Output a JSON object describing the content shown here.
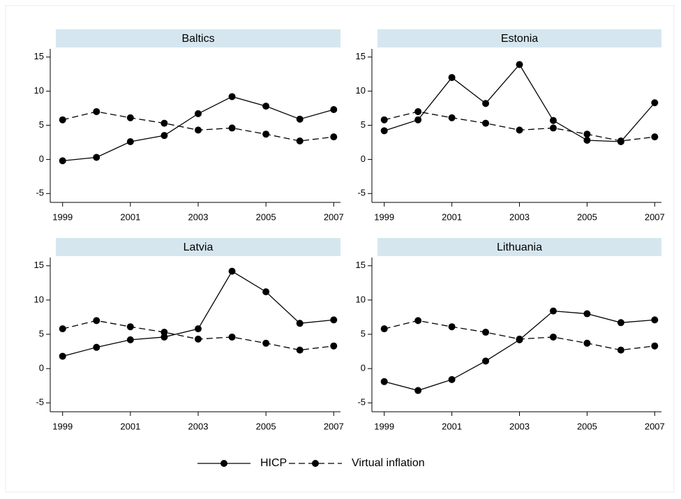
{
  "chart_data": [
    {
      "type": "line",
      "title": "Baltics",
      "x": [
        1999,
        2000,
        2001,
        2002,
        2003,
        2004,
        2005,
        2006,
        2007
      ],
      "xlim": [
        1998.8,
        2007.2
      ],
      "xticks": [
        1999,
        2001,
        2003,
        2005,
        2007
      ],
      "ylim": [
        -6.3,
        16.2
      ],
      "yticks": [
        -5,
        0,
        5,
        10,
        15
      ],
      "grid": false,
      "series": [
        {
          "name": "HICP",
          "color": "#000000",
          "line_style": "solid",
          "values": [
            -0.2,
            0.3,
            2.6,
            3.5,
            6.7,
            9.2,
            7.8,
            5.9,
            7.3
          ]
        },
        {
          "name": "Virtual inflation",
          "color": "#000000",
          "line_style": "dashed",
          "values": [
            5.8,
            7.0,
            6.1,
            5.3,
            4.3,
            4.6,
            3.7,
            2.7,
            3.3
          ]
        }
      ]
    },
    {
      "type": "line",
      "title": "Estonia",
      "x": [
        1999,
        2000,
        2001,
        2002,
        2003,
        2004,
        2005,
        2006,
        2007
      ],
      "xlim": [
        1998.8,
        2007.2
      ],
      "xticks": [
        1999,
        2001,
        2003,
        2005,
        2007
      ],
      "ylim": [
        -6.3,
        16.2
      ],
      "yticks": [
        -5,
        0,
        5,
        10,
        15
      ],
      "grid": false,
      "series": [
        {
          "color": "#000000",
          "line_style": "solid",
          "values": [
            4.2,
            5.8,
            12.0,
            8.2,
            13.9,
            5.7,
            2.8,
            2.6,
            8.3
          ]
        },
        {
          "color": "#000000",
          "line_style": "dashed",
          "values": [
            5.8,
            7.0,
            6.1,
            5.3,
            4.3,
            4.6,
            3.7,
            2.7,
            3.3
          ]
        }
      ]
    },
    {
      "type": "line",
      "title": "Latvia",
      "x": [
        1999,
        2000,
        2001,
        2002,
        2003,
        2004,
        2005,
        2006,
        2007
      ],
      "xlim": [
        1998.8,
        2007.2
      ],
      "xticks": [
        1999,
        2001,
        2003,
        2005,
        2007
      ],
      "ylim": [
        -6.3,
        16.2
      ],
      "yticks": [
        -5,
        0,
        5,
        10,
        15
      ],
      "grid": false,
      "series": [
        {
          "color": "#000000",
          "line_style": "solid",
          "values": [
            1.8,
            3.1,
            4.2,
            4.6,
            5.8,
            14.2,
            11.2,
            6.6,
            7.1
          ]
        },
        {
          "color": "#000000",
          "line_style": "dashed",
          "values": [
            5.8,
            7.0,
            6.1,
            5.3,
            4.3,
            4.6,
            3.7,
            2.7,
            3.3
          ]
        }
      ]
    },
    {
      "type": "line",
      "title": "Lithuania",
      "x": [
        1999,
        2000,
        2001,
        2002,
        2003,
        2004,
        2005,
        2006,
        2007
      ],
      "xlim": [
        1998.8,
        2007.2
      ],
      "xticks": [
        1999,
        2001,
        2003,
        2005,
        2007
      ],
      "ylim": [
        -6.3,
        16.2
      ],
      "yticks": [
        -5,
        0,
        5,
        10,
        15
      ],
      "grid": false,
      "series": [
        {
          "color": "#000000",
          "line_style": "solid",
          "values": [
            -1.9,
            -3.2,
            -1.6,
            1.1,
            4.2,
            8.4,
            8.0,
            6.7,
            7.1
          ]
        },
        {
          "color": "#000000",
          "line_style": "dashed",
          "values": [
            5.8,
            7.0,
            6.1,
            5.3,
            4.3,
            4.6,
            3.7,
            2.7,
            3.3
          ]
        }
      ]
    }
  ]
}
